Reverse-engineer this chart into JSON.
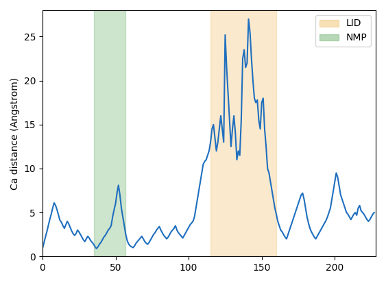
{
  "nmp_region": [
    35,
    57
  ],
  "lid_region": [
    115,
    160
  ],
  "nmp_color": "#90c490",
  "lid_color": "#f5d090",
  "nmp_alpha": 0.45,
  "lid_alpha": 0.45,
  "line_color": "#1f6fbf",
  "line_width": 1.5,
  "ylabel": "Ca distance (Angstrom)",
  "xlabel": "",
  "xlim": [
    0,
    228
  ],
  "ylim": [
    0,
    28
  ],
  "figsize": [
    5.63,
    4.13
  ],
  "dpi": 100,
  "x_values": [
    0,
    1,
    2,
    3,
    4,
    5,
    6,
    7,
    8,
    9,
    10,
    11,
    12,
    13,
    14,
    15,
    16,
    17,
    18,
    19,
    20,
    21,
    22,
    23,
    24,
    25,
    26,
    27,
    28,
    29,
    30,
    31,
    32,
    33,
    34,
    35,
    36,
    37,
    38,
    39,
    40,
    41,
    42,
    43,
    44,
    45,
    46,
    47,
    48,
    49,
    50,
    51,
    52,
    53,
    54,
    55,
    56,
    57,
    58,
    59,
    60,
    61,
    62,
    63,
    64,
    65,
    66,
    67,
    68,
    69,
    70,
    71,
    72,
    73,
    74,
    75,
    76,
    77,
    78,
    79,
    80,
    81,
    82,
    83,
    84,
    85,
    86,
    87,
    88,
    89,
    90,
    91,
    92,
    93,
    94,
    95,
    96,
    97,
    98,
    99,
    100,
    101,
    102,
    103,
    104,
    105,
    106,
    107,
    108,
    109,
    110,
    111,
    112,
    113,
    114,
    115,
    116,
    117,
    118,
    119,
    120,
    121,
    122,
    123,
    124,
    125,
    126,
    127,
    128,
    129,
    130,
    131,
    132,
    133,
    134,
    135,
    136,
    137,
    138,
    139,
    140,
    141,
    142,
    143,
    144,
    145,
    146,
    147,
    148,
    149,
    150,
    151,
    152,
    153,
    154,
    155,
    156,
    157,
    158,
    159,
    160,
    161,
    162,
    163,
    164,
    165,
    166,
    167,
    168,
    169,
    170,
    171,
    172,
    173,
    174,
    175,
    176,
    177,
    178,
    179,
    180,
    181,
    182,
    183,
    184,
    185,
    186,
    187,
    188,
    189,
    190,
    191,
    192,
    193,
    194,
    195,
    196,
    197,
    198,
    199,
    200,
    201,
    202,
    203,
    204,
    205,
    206,
    207,
    208,
    209,
    210,
    211,
    212,
    213,
    214,
    215,
    216,
    217,
    218,
    219,
    220,
    221,
    222,
    223,
    224,
    225,
    226,
    227
  ],
  "y_values": [
    0.9,
    1.5,
    2.2,
    2.8,
    3.5,
    4.2,
    4.8,
    5.5,
    6.1,
    5.8,
    5.3,
    4.7,
    4.1,
    3.9,
    3.5,
    3.2,
    3.6,
    4.0,
    3.7,
    3.3,
    2.9,
    2.6,
    2.4,
    2.6,
    3.0,
    2.8,
    2.5,
    2.2,
    1.9,
    1.7,
    2.0,
    2.3,
    2.1,
    1.8,
    1.6,
    1.4,
    1.1,
    0.9,
    1.1,
    1.4,
    1.6,
    1.9,
    2.2,
    2.4,
    2.7,
    3.0,
    3.2,
    3.5,
    4.5,
    5.3,
    6.0,
    7.2,
    8.1,
    7.0,
    5.5,
    4.5,
    3.5,
    2.5,
    1.8,
    1.4,
    1.2,
    1.1,
    1.0,
    1.2,
    1.5,
    1.7,
    1.9,
    2.1,
    2.3,
    2.0,
    1.7,
    1.5,
    1.4,
    1.6,
    1.9,
    2.2,
    2.5,
    2.7,
    3.0,
    3.2,
    3.4,
    3.0,
    2.7,
    2.4,
    2.2,
    2.0,
    2.2,
    2.5,
    2.8,
    3.0,
    3.2,
    3.5,
    3.0,
    2.7,
    2.5,
    2.3,
    2.1,
    2.4,
    2.7,
    3.0,
    3.3,
    3.6,
    3.8,
    4.0,
    4.5,
    5.5,
    6.5,
    7.5,
    8.5,
    9.5,
    10.5,
    10.8,
    11.0,
    11.5,
    12.0,
    13.0,
    14.5,
    15.0,
    13.5,
    12.0,
    13.0,
    14.5,
    16.0,
    14.5,
    13.0,
    25.2,
    21.5,
    18.5,
    15.5,
    12.5,
    14.5,
    16.0,
    14.0,
    11.0,
    12.0,
    11.5,
    15.5,
    22.5,
    23.5,
    21.5,
    22.0,
    27.0,
    25.5,
    22.5,
    20.0,
    18.0,
    17.5,
    17.8,
    15.5,
    14.5,
    17.5,
    18.0,
    14.5,
    12.5,
    10.0,
    9.5,
    8.5,
    7.5,
    6.5,
    5.5,
    4.8,
    4.0,
    3.5,
    3.0,
    2.8,
    2.5,
    2.2,
    2.0,
    2.5,
    3.0,
    3.5,
    4.0,
    4.5,
    5.0,
    5.5,
    6.0,
    6.5,
    7.0,
    7.2,
    6.5,
    5.5,
    4.5,
    3.8,
    3.2,
    2.8,
    2.5,
    2.2,
    2.0,
    2.3,
    2.6,
    2.9,
    3.2,
    3.5,
    3.8,
    4.1,
    4.5,
    5.0,
    5.5,
    6.5,
    7.5,
    8.5,
    9.5,
    9.0,
    8.0,
    7.0,
    6.5,
    6.0,
    5.5,
    5.0,
    4.8,
    4.5,
    4.2,
    4.5,
    4.8,
    5.0,
    4.7,
    5.5,
    5.8,
    5.2,
    5.0,
    4.8,
    4.5,
    4.2,
    4.0,
    4.2,
    4.5,
    4.8,
    5.0
  ]
}
